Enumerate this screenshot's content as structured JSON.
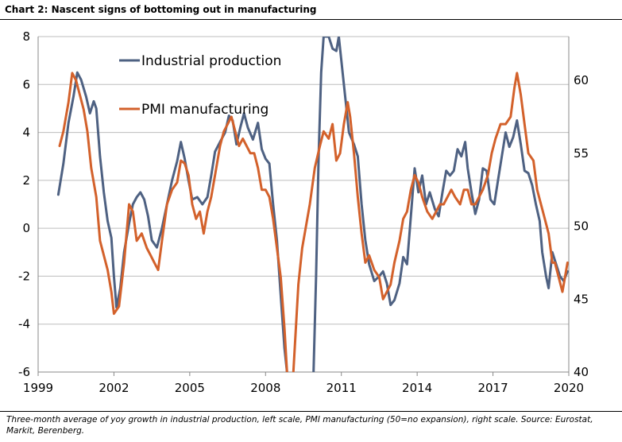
{
  "title": "Chart 2: Nascent signs of bottoming out in manufacturing",
  "footnote": "Three-month average of yoy growth in industrial production, left scale, PMI manufacturing (50=no expansion), right scale. Source: Eurostat, Markit, Berenberg.",
  "colors": {
    "industrial": "#4e6182",
    "pmi": "#d3612b",
    "grid": "#bdbdbd"
  },
  "chart_data": {
    "type": "line",
    "title": "Chart 2: Nascent signs of bottoming out in manufacturing",
    "xlim": [
      1999,
      2020
    ],
    "x_ticks": [
      "1999",
      "2002",
      "2005",
      "2008",
      "2011",
      "2014",
      "2017",
      "2020"
    ],
    "x_tick_values": [
      1999,
      2002,
      2005,
      2008,
      2011,
      2014,
      2017,
      2020
    ],
    "y_left": {
      "lim": [
        -6,
        8
      ],
      "ticks": [
        "8",
        "6",
        "4",
        "2",
        "0",
        "-2",
        "-4",
        "-6"
      ],
      "tick_values": [
        8,
        6,
        4,
        2,
        0,
        -2,
        -4,
        -6
      ]
    },
    "y_right": {
      "lim": [
        40,
        63
      ],
      "ticks": [
        "60",
        "55",
        "50",
        "45",
        "40"
      ],
      "tick_values": [
        60,
        55,
        50,
        45,
        40
      ]
    },
    "legend": [
      "Industrial production",
      "PMI manufacturing"
    ],
    "series": [
      {
        "name": "Industrial production",
        "axis": "left",
        "points": [
          [
            1999.8,
            1.4
          ],
          [
            2000.0,
            2.7
          ],
          [
            2000.2,
            4.4
          ],
          [
            2000.4,
            5.5
          ],
          [
            2000.55,
            6.5
          ],
          [
            2000.7,
            6.2
          ],
          [
            2000.9,
            5.5
          ],
          [
            2001.05,
            4.8
          ],
          [
            2001.2,
            5.3
          ],
          [
            2001.3,
            5.0
          ],
          [
            2001.45,
            3.0
          ],
          [
            2001.6,
            1.5
          ],
          [
            2001.75,
            0.3
          ],
          [
            2001.9,
            -0.4
          ],
          [
            2002.0,
            -2.0
          ],
          [
            2002.1,
            -3.3
          ],
          [
            2002.25,
            -2.5
          ],
          [
            2002.4,
            -1.0
          ],
          [
            2002.6,
            0.2
          ],
          [
            2002.75,
            1.0
          ],
          [
            2002.9,
            1.3
          ],
          [
            2003.05,
            1.5
          ],
          [
            2003.2,
            1.2
          ],
          [
            2003.35,
            0.5
          ],
          [
            2003.5,
            -0.5
          ],
          [
            2003.7,
            -0.8
          ],
          [
            2003.9,
            0.0
          ],
          [
            2004.1,
            1.0
          ],
          [
            2004.3,
            2.0
          ],
          [
            2004.5,
            2.8
          ],
          [
            2004.65,
            3.6
          ],
          [
            2004.8,
            2.9
          ],
          [
            2004.95,
            2.0
          ],
          [
            2005.1,
            1.2
          ],
          [
            2005.3,
            1.3
          ],
          [
            2005.5,
            1.0
          ],
          [
            2005.7,
            1.3
          ],
          [
            2005.85,
            2.2
          ],
          [
            2006.0,
            3.2
          ],
          [
            2006.2,
            3.6
          ],
          [
            2006.4,
            4.0
          ],
          [
            2006.55,
            4.7
          ],
          [
            2006.7,
            4.5
          ],
          [
            2006.85,
            3.5
          ],
          [
            2007.0,
            4.2
          ],
          [
            2007.15,
            4.8
          ],
          [
            2007.3,
            4.2
          ],
          [
            2007.5,
            3.7
          ],
          [
            2007.7,
            4.4
          ],
          [
            2007.85,
            3.3
          ],
          [
            2008.0,
            2.9
          ],
          [
            2008.15,
            2.7
          ],
          [
            2008.3,
            1.0
          ],
          [
            2008.45,
            -0.5
          ],
          [
            2008.6,
            -2.8
          ],
          [
            2008.75,
            -5.0
          ],
          [
            2008.85,
            -6.0
          ]
        ],
        "points_b": [
          [
            2009.9,
            -6.0
          ],
          [
            2010.0,
            -2.0
          ],
          [
            2010.1,
            3.0
          ],
          [
            2010.2,
            6.5
          ],
          [
            2010.3,
            8.0
          ],
          [
            2010.5,
            8.0
          ],
          [
            2010.65,
            7.5
          ],
          [
            2010.8,
            7.4
          ],
          [
            2010.9,
            8.0
          ],
          [
            2011.1,
            6.0
          ],
          [
            2011.2,
            5.0
          ],
          [
            2011.3,
            4.0
          ],
          [
            2011.5,
            3.5
          ],
          [
            2011.65,
            3.0
          ],
          [
            2011.8,
            1.0
          ],
          [
            2011.95,
            -0.5
          ],
          [
            2012.1,
            -1.5
          ],
          [
            2012.3,
            -2.2
          ],
          [
            2012.5,
            -2.0
          ],
          [
            2012.65,
            -1.8
          ],
          [
            2012.8,
            -2.3
          ],
          [
            2012.95,
            -3.2
          ],
          [
            2013.1,
            -3.0
          ],
          [
            2013.3,
            -2.3
          ],
          [
            2013.45,
            -1.2
          ],
          [
            2013.6,
            -1.5
          ],
          [
            2013.75,
            0.5
          ],
          [
            2013.9,
            2.5
          ],
          [
            2014.05,
            1.5
          ],
          [
            2014.2,
            2.2
          ],
          [
            2014.35,
            1.0
          ],
          [
            2014.5,
            1.5
          ],
          [
            2014.7,
            0.8
          ],
          [
            2014.85,
            0.5
          ],
          [
            2015.0,
            1.5
          ],
          [
            2015.15,
            2.4
          ],
          [
            2015.3,
            2.2
          ],
          [
            2015.45,
            2.4
          ],
          [
            2015.6,
            3.3
          ],
          [
            2015.75,
            3.0
          ],
          [
            2015.9,
            3.6
          ],
          [
            2016.0,
            2.5
          ],
          [
            2016.15,
            1.5
          ],
          [
            2016.3,
            0.6
          ],
          [
            2016.45,
            1.2
          ],
          [
            2016.6,
            2.5
          ],
          [
            2016.75,
            2.4
          ],
          [
            2016.9,
            1.2
          ],
          [
            2017.05,
            1.0
          ],
          [
            2017.2,
            2.0
          ],
          [
            2017.35,
            3.0
          ],
          [
            2017.5,
            4.0
          ],
          [
            2017.65,
            3.4
          ],
          [
            2017.8,
            3.8
          ],
          [
            2017.95,
            4.5
          ],
          [
            2018.1,
            3.5
          ],
          [
            2018.25,
            2.4
          ],
          [
            2018.4,
            2.3
          ],
          [
            2018.55,
            1.8
          ],
          [
            2018.7,
            1.0
          ],
          [
            2018.85,
            0.3
          ],
          [
            2018.95,
            -1.0
          ],
          [
            2019.1,
            -2.0
          ],
          [
            2019.2,
            -2.5
          ],
          [
            2019.35,
            -1.0
          ],
          [
            2019.5,
            -1.5
          ],
          [
            2019.65,
            -2.0
          ],
          [
            2019.8,
            -2.2
          ],
          [
            2019.95,
            -1.8
          ]
        ]
      },
      {
        "name": "PMI manufacturing",
        "axis": "right",
        "points": [
          [
            1999.85,
            55.5
          ],
          [
            2000.0,
            56.5
          ],
          [
            2000.2,
            58.5
          ],
          [
            2000.35,
            60.5
          ],
          [
            2000.5,
            60.0
          ],
          [
            2000.65,
            59.0
          ],
          [
            2000.8,
            58.0
          ],
          [
            2000.95,
            56.5
          ],
          [
            2001.1,
            54.0
          ],
          [
            2001.3,
            52.0
          ],
          [
            2001.45,
            49.0
          ],
          [
            2001.6,
            48.0
          ],
          [
            2001.75,
            47.0
          ],
          [
            2001.9,
            45.5
          ],
          [
            2002.0,
            44.0
          ],
          [
            2002.2,
            44.5
          ],
          [
            2002.4,
            47.5
          ],
          [
            2002.6,
            51.5
          ],
          [
            2002.75,
            51.0
          ],
          [
            2002.9,
            49.0
          ],
          [
            2003.1,
            49.5
          ],
          [
            2003.3,
            48.5
          ],
          [
            2003.45,
            48.0
          ],
          [
            2003.6,
            47.5
          ],
          [
            2003.75,
            47.0
          ],
          [
            2003.9,
            49.0
          ],
          [
            2004.1,
            51.5
          ],
          [
            2004.3,
            52.5
          ],
          [
            2004.5,
            53.0
          ],
          [
            2004.65,
            54.5
          ],
          [
            2004.8,
            54.3
          ],
          [
            2004.95,
            53.5
          ],
          [
            2005.1,
            51.5
          ],
          [
            2005.25,
            50.5
          ],
          [
            2005.4,
            51.0
          ],
          [
            2005.55,
            49.5
          ],
          [
            2005.7,
            51.0
          ],
          [
            2005.85,
            52.0
          ],
          [
            2006.0,
            53.5
          ],
          [
            2006.2,
            55.5
          ],
          [
            2006.35,
            56.5
          ],
          [
            2006.5,
            57.0
          ],
          [
            2006.65,
            57.5
          ],
          [
            2006.8,
            56.5
          ],
          [
            2006.95,
            55.5
          ],
          [
            2007.1,
            56.0
          ],
          [
            2007.25,
            55.5
          ],
          [
            2007.4,
            55.0
          ],
          [
            2007.55,
            55.0
          ],
          [
            2007.7,
            54.0
          ],
          [
            2007.85,
            52.5
          ],
          [
            2008.0,
            52.5
          ],
          [
            2008.15,
            52.0
          ],
          [
            2008.3,
            50.5
          ],
          [
            2008.45,
            48.5
          ],
          [
            2008.6,
            46.5
          ],
          [
            2008.75,
            43.0
          ],
          [
            2008.85,
            40.0
          ]
        ],
        "points_b": [
          [
            2009.1,
            40.0
          ],
          [
            2009.3,
            46.0
          ],
          [
            2009.45,
            48.5
          ],
          [
            2009.6,
            50.0
          ],
          [
            2009.75,
            51.5
          ],
          [
            2009.95,
            54.0
          ],
          [
            2010.15,
            55.5
          ],
          [
            2010.3,
            56.5
          ],
          [
            2010.5,
            56.0
          ],
          [
            2010.65,
            57.0
          ],
          [
            2010.8,
            54.5
          ],
          [
            2010.95,
            55.0
          ],
          [
            2011.1,
            57.0
          ],
          [
            2011.25,
            58.5
          ],
          [
            2011.35,
            57.5
          ],
          [
            2011.5,
            55.0
          ],
          [
            2011.65,
            52.0
          ],
          [
            2011.8,
            49.5
          ],
          [
            2011.95,
            47.5
          ],
          [
            2012.1,
            48.0
          ],
          [
            2012.3,
            47.0
          ],
          [
            2012.5,
            46.5
          ],
          [
            2012.65,
            45.0
          ],
          [
            2012.8,
            45.5
          ],
          [
            2012.95,
            46.0
          ],
          [
            2013.1,
            47.5
          ],
          [
            2013.3,
            49.0
          ],
          [
            2013.45,
            50.5
          ],
          [
            2013.6,
            51.0
          ],
          [
            2013.75,
            52.5
          ],
          [
            2013.9,
            53.5
          ],
          [
            2014.05,
            53.0
          ],
          [
            2014.2,
            52.0
          ],
          [
            2014.4,
            51.0
          ],
          [
            2014.6,
            50.5
          ],
          [
            2014.75,
            51.0
          ],
          [
            2014.9,
            51.5
          ],
          [
            2015.05,
            51.5
          ],
          [
            2015.2,
            52.0
          ],
          [
            2015.35,
            52.5
          ],
          [
            2015.5,
            52.0
          ],
          [
            2015.7,
            51.5
          ],
          [
            2015.85,
            52.5
          ],
          [
            2016.0,
            52.5
          ],
          [
            2016.15,
            51.5
          ],
          [
            2016.3,
            51.5
          ],
          [
            2016.45,
            52.0
          ],
          [
            2016.6,
            52.5
          ],
          [
            2016.8,
            53.5
          ],
          [
            2016.95,
            55.0
          ],
          [
            2017.1,
            56.0
          ],
          [
            2017.3,
            57.0
          ],
          [
            2017.5,
            57.0
          ],
          [
            2017.7,
            57.5
          ],
          [
            2017.85,
            59.5
          ],
          [
            2017.95,
            60.5
          ],
          [
            2018.1,
            59.0
          ],
          [
            2018.25,
            57.0
          ],
          [
            2018.4,
            55.0
          ],
          [
            2018.6,
            54.5
          ],
          [
            2018.75,
            52.5
          ],
          [
            2018.9,
            51.5
          ],
          [
            2019.05,
            50.5
          ],
          [
            2019.2,
            49.5
          ],
          [
            2019.35,
            47.5
          ],
          [
            2019.45,
            47.5
          ],
          [
            2019.6,
            46.5
          ],
          [
            2019.75,
            45.5
          ],
          [
            2019.85,
            46.5
          ],
          [
            2019.95,
            47.5
          ]
        ]
      }
    ]
  }
}
